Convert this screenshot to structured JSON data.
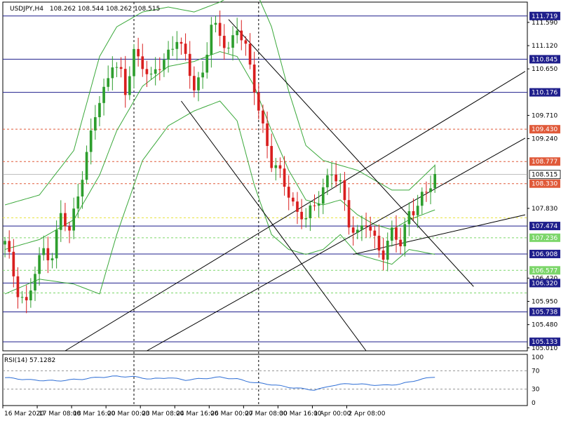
{
  "header": {
    "symbol": "USDJPY,H4",
    "ohlc": "108.262 108.544 108.262 108.515"
  },
  "rsi_label": "RSI(14) 57.1282",
  "colors": {
    "bull": "#2e9e2e",
    "bear": "#d91f1f",
    "level_blue": "#1f1f8c",
    "level_red": "#e05a3a",
    "level_yellow": "#e8e23a",
    "level_green": "#7cd66a",
    "bollinger": "#3aa83a",
    "trend": "#000000",
    "rsi": "#2f6fd6",
    "price_label": "#000000"
  },
  "chart_data": {
    "type": "candlestick",
    "ylim": [
      104.95,
      112.0
    ],
    "candle_count": 118,
    "price_ticks": [
      "111.590",
      "111.120",
      "110.650",
      "109.710",
      "109.240",
      "107.830",
      "106.420",
      "105.950",
      "105.480",
      "105.010"
    ],
    "x_ticks": [
      "16 Mar 2020",
      "17 Mar 08:00",
      "18 Mar 16:00",
      "20 Mar 00:00",
      "23 Mar 08:00",
      "24 Mar 16:00",
      "26 Mar 00:00",
      "27 Mar 08:00",
      "30 Mar 16:00",
      "1 Apr 00:00",
      "2 Apr 08:00"
    ],
    "x_tick_index": [
      0,
      8,
      16,
      24,
      32,
      40,
      48,
      56,
      64,
      72,
      80
    ],
    "session_dividers": [
      30,
      59
    ],
    "h_levels": [
      {
        "value": 111.719,
        "label": "111.719",
        "style": "solid",
        "color": "#1f1f8c",
        "label_bg": "#1f1f8c"
      },
      {
        "value": 110.845,
        "label": "110.845",
        "style": "solid",
        "color": "#1f1f8c",
        "label_bg": "#1f1f8c"
      },
      {
        "value": 110.176,
        "label": "110.176",
        "style": "solid",
        "color": "#1f1f8c",
        "label_bg": "#1f1f8c"
      },
      {
        "value": 109.43,
        "label": "109.430",
        "style": "dashed",
        "color": "#e05a3a",
        "label_bg": "#e05a3a"
      },
      {
        "value": 108.777,
        "label": "108.777",
        "style": "dashed",
        "color": "#e05a3a",
        "label_bg": "#e05a3a"
      },
      {
        "value": 108.33,
        "label": "108.330",
        "style": "dashed",
        "color": "#e05a3a",
        "label_bg": "#e05a3a"
      },
      {
        "value": 107.64,
        "label": "",
        "style": "dashed",
        "color": "#e8e23a",
        "label_bg": "#e8e23a"
      },
      {
        "value": 107.474,
        "label": "107.474",
        "style": "solid",
        "color": "#1f1f8c",
        "label_bg": "#1f1f8c"
      },
      {
        "value": 107.236,
        "label": "107.236",
        "style": "dashed",
        "color": "#7cd66a",
        "label_bg": "#7cd66a"
      },
      {
        "value": 106.908,
        "label": "106.908",
        "style": "solid",
        "color": "#1f1f8c",
        "label_bg": "#1f1f8c"
      },
      {
        "value": 106.577,
        "label": "106.577",
        "style": "dashed",
        "color": "#7cd66a",
        "label_bg": "#7cd66a"
      },
      {
        "value": 106.32,
        "label": "106.320",
        "style": "solid",
        "color": "#1f1f8c",
        "label_bg": "#1f1f8c"
      },
      {
        "value": 106.12,
        "label": "",
        "style": "dashed",
        "color": "#7cd66a",
        "label_bg": "#7cd66a"
      },
      {
        "value": 105.738,
        "label": "105.738",
        "style": "solid",
        "color": "#1f1f8c",
        "label_bg": "#1f1f8c"
      },
      {
        "value": 105.133,
        "label": "105.133",
        "style": "solid",
        "color": "#1f1f8c",
        "label_bg": "#1f1f8c"
      }
    ],
    "current_price": {
      "value": 108.515,
      "label": "108.515"
    },
    "trendlines": [
      {
        "from": [
          14,
          104.95
        ],
        "to": [
          121,
          110.6
        ]
      },
      {
        "from": [
          33,
          104.95
        ],
        "to": [
          121,
          109.25
        ]
      },
      {
        "from": [
          81,
          106.9
        ],
        "to": [
          121,
          107.7
        ]
      },
      {
        "from": [
          41,
          110.0
        ],
        "to": [
          84,
          104.95
        ]
      },
      {
        "from": [
          52,
          111.65
        ],
        "to": [
          109,
          106.25
        ]
      }
    ],
    "close_points": [
      [
        0,
        107.1
      ],
      [
        3,
        106.2
      ],
      [
        5,
        105.9
      ],
      [
        7,
        106.5
      ],
      [
        9,
        107.0
      ],
      [
        11,
        106.9
      ],
      [
        13,
        107.7
      ],
      [
        15,
        107.3
      ],
      [
        17,
        108.2
      ],
      [
        19,
        108.9
      ],
      [
        21,
        109.7
      ],
      [
        23,
        110.2
      ],
      [
        25,
        110.85
      ],
      [
        27,
        110.5
      ],
      [
        28,
        110.1
      ],
      [
        30,
        111.0
      ],
      [
        32,
        110.8
      ],
      [
        34,
        110.4
      ],
      [
        36,
        110.7
      ],
      [
        38,
        111.0
      ],
      [
        40,
        111.3
      ],
      [
        42,
        110.8
      ],
      [
        44,
        110.3
      ],
      [
        46,
        110.6
      ],
      [
        48,
        111.5
      ],
      [
        50,
        111.3
      ],
      [
        52,
        111.1
      ],
      [
        54,
        111.5
      ],
      [
        56,
        111.0
      ],
      [
        58,
        110.3
      ],
      [
        60,
        109.5
      ],
      [
        62,
        108.7
      ],
      [
        64,
        108.5
      ],
      [
        66,
        108.2
      ],
      [
        68,
        107.7
      ],
      [
        70,
        107.6
      ],
      [
        72,
        107.9
      ],
      [
        74,
        108.3
      ],
      [
        76,
        108.5
      ],
      [
        78,
        108.3
      ],
      [
        80,
        107.6
      ],
      [
        82,
        107.3
      ],
      [
        84,
        107.5
      ],
      [
        86,
        107.2
      ],
      [
        88,
        106.95
      ],
      [
        90,
        107.3
      ],
      [
        92,
        107.1
      ],
      [
        94,
        107.8
      ],
      [
        96,
        107.9
      ],
      [
        98,
        108.1
      ],
      [
        100,
        108.52
      ]
    ],
    "bollinger_points": [
      [
        0,
        107.9,
        107.0,
        106.1
      ],
      [
        8,
        108.1,
        107.2,
        106.4
      ],
      [
        16,
        109.0,
        107.6,
        106.3
      ],
      [
        22,
        110.9,
        108.5,
        106.1
      ],
      [
        26,
        111.5,
        109.4,
        107.3
      ],
      [
        32,
        111.8,
        110.3,
        108.8
      ],
      [
        38,
        111.9,
        110.7,
        109.5
      ],
      [
        44,
        111.8,
        110.8,
        109.8
      ],
      [
        50,
        112.0,
        111.0,
        110.0
      ],
      [
        54,
        112.2,
        110.9,
        109.6
      ],
      [
        58,
        112.3,
        110.3,
        108.3
      ],
      [
        62,
        111.5,
        109.4,
        107.3
      ],
      [
        66,
        110.2,
        108.6,
        107.0
      ],
      [
        70,
        109.1,
        108.0,
        106.9
      ],
      [
        74,
        108.8,
        107.9,
        107.0
      ],
      [
        78,
        108.7,
        108.0,
        107.3
      ],
      [
        82,
        108.6,
        107.7,
        106.9
      ],
      [
        86,
        108.4,
        107.5,
        106.8
      ],
      [
        90,
        108.2,
        107.4,
        106.7
      ],
      [
        94,
        108.2,
        107.6,
        107.0
      ],
      [
        100,
        108.7,
        107.8,
        106.9
      ]
    ],
    "rsi": {
      "ylim": [
        0,
        100
      ],
      "ticks": [
        "100",
        "70",
        "30",
        "0"
      ],
      "tick_values": [
        100,
        70,
        30,
        0
      ],
      "levels": [
        70,
        30
      ],
      "points": [
        [
          0,
          55
        ],
        [
          6,
          50
        ],
        [
          12,
          48
        ],
        [
          18,
          52
        ],
        [
          22,
          56
        ],
        [
          26,
          58
        ],
        [
          30,
          57
        ],
        [
          34,
          52
        ],
        [
          38,
          55
        ],
        [
          42,
          50
        ],
        [
          46,
          53
        ],
        [
          50,
          56
        ],
        [
          54,
          52
        ],
        [
          58,
          44
        ],
        [
          62,
          40
        ],
        [
          66,
          34
        ],
        [
          70,
          30
        ],
        [
          72,
          28
        ],
        [
          74,
          32
        ],
        [
          76,
          38
        ],
        [
          80,
          42
        ],
        [
          84,
          40
        ],
        [
          88,
          38
        ],
        [
          92,
          41
        ],
        [
          96,
          50
        ],
        [
          100,
          57
        ]
      ]
    }
  }
}
